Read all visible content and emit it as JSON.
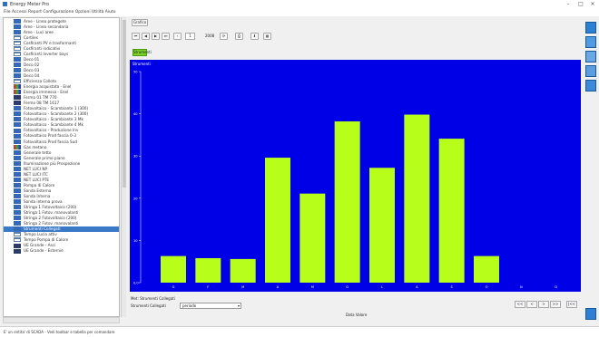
{
  "window": {
    "title": "Energy Meter Pro",
    "controls": [
      "–",
      "□",
      "×"
    ]
  },
  "menubar": {
    "text": "File  Accessi Report  Configurazione  Opzioni  Utilità  Aiuto"
  },
  "sidebar": {
    "items": [
      {
        "label": "Aree - Linea protegete",
        "icon": "blue"
      },
      {
        "label": "Aree - Linea secondaria",
        "icon": "blue"
      },
      {
        "label": "Aree - Luci aree",
        "icon": "blue"
      },
      {
        "label": "Cortiles",
        "icon": "tree"
      },
      {
        "label": "Cosfiranti PV e trasformanti",
        "icon": "tree"
      },
      {
        "label": "Cosfiranti indicativi",
        "icon": "tree"
      },
      {
        "label": "Cosfiranti Inverter bays",
        "icon": "tree"
      },
      {
        "label": "Deco 01",
        "icon": "blue"
      },
      {
        "label": "Deco 02",
        "icon": "blue"
      },
      {
        "label": "Deco 03",
        "icon": "blue"
      },
      {
        "label": "Deco 04",
        "icon": "blue"
      },
      {
        "label": "Efficienza Colloto",
        "icon": "tree"
      },
      {
        "label": "Energia acquistata - Enel",
        "icon": "multi"
      },
      {
        "label": "Energia immessa - Enel",
        "icon": "multi"
      },
      {
        "label": "Fermo 01 TM 770",
        "icon": "x"
      },
      {
        "label": "Fermo 08 TM 1617",
        "icon": "x"
      },
      {
        "label": "Fotovoltaico - Scambiante 1 (300)",
        "icon": "blue"
      },
      {
        "label": "Fotovoltaico - Scambiante 2 (300)",
        "icon": "blue"
      },
      {
        "label": "Fotovoltaico - Scambiante 3 Mk",
        "icon": "blue"
      },
      {
        "label": "Fotovoltaico - Scambiante 4 Mk",
        "icon": "blue"
      },
      {
        "label": "Fotovoltaico - Produzione Inv",
        "icon": "blue"
      },
      {
        "label": "Fotovoltaico Prod fascia 0-3",
        "icon": "blue"
      },
      {
        "label": "Fotovoltaico Prod fascia Sud",
        "icon": "blue"
      },
      {
        "label": "Gas metano",
        "icon": "multi"
      },
      {
        "label": "Generale tetto",
        "icon": "blue"
      },
      {
        "label": "Generale primo piano",
        "icon": "blue"
      },
      {
        "label": "Illuminazione più Prospezione",
        "icon": "blue"
      },
      {
        "label": "NET LUCI NP",
        "icon": "blue"
      },
      {
        "label": "NET LUCI ITC",
        "icon": "blue"
      },
      {
        "label": "NET LUCI PTE",
        "icon": "blue"
      },
      {
        "label": "Pompa di Calore",
        "icon": "blue"
      },
      {
        "label": "Sonda Esterna",
        "icon": "blue"
      },
      {
        "label": "Sonda Interna",
        "icon": "blue"
      },
      {
        "label": "Sonda interna prova",
        "icon": "blue"
      },
      {
        "label": "Stringa 1 Fotovoltaico (200)",
        "icon": "blue"
      },
      {
        "label": "Stringa 1 Fotov. manovalanti",
        "icon": "blue"
      },
      {
        "label": "Stringa 2 Fotovoltaico (200)",
        "icon": "blue"
      },
      {
        "label": "Stringa 2 Fotov. manovalanti",
        "icon": "blue"
      },
      {
        "label": "Strumenti Collegati",
        "icon": "blue",
        "selected": true
      },
      {
        "label": "Tempo Lucia attiv",
        "icon": "tree"
      },
      {
        "label": "Tempo Pompa di Calore",
        "icon": "tree"
      },
      {
        "label": "UE Grande - Asci",
        "icon": "x"
      },
      {
        "label": "UE Grande - Esternie",
        "icon": "x"
      }
    ]
  },
  "toolbar": {
    "grafico_label": "Grafico",
    "page_value": "1",
    "year_value": "2008",
    "green_button_label": "Strumenti"
  },
  "chart_panel": {
    "caption": "Strumenti"
  },
  "chart_data": {
    "type": "bar",
    "categories": [
      "G",
      "F",
      "M",
      "A",
      "M",
      "G",
      "L",
      "A",
      "S",
      "O",
      "N",
      "D"
    ],
    "values": [
      6.3,
      5.8,
      5.6,
      29.6,
      21.1,
      38.2,
      27.2,
      39.8,
      34.1,
      6.3,
      0,
      0
    ],
    "title": "",
    "xlabel": "Data Valore",
    "ylabel": "",
    "ylim": [
      0,
      50
    ],
    "yticks": [
      "0,0",
      "10",
      "20",
      "30",
      "40",
      "50"
    ],
    "bar_color": "#b7ff1a",
    "background": "#0000e6"
  },
  "lower": {
    "section_label": "Met: Strumenti Collegati",
    "combo_label": "Strumenti Collegati",
    "combo_value": "periodo",
    "nav_buttons": [
      "<<",
      "<",
      ">",
      ">>",
      "|<<"
    ]
  },
  "status": {
    "text": "E' un entita' di SCADA - Vedi toolbar e tabella per comandare"
  }
}
